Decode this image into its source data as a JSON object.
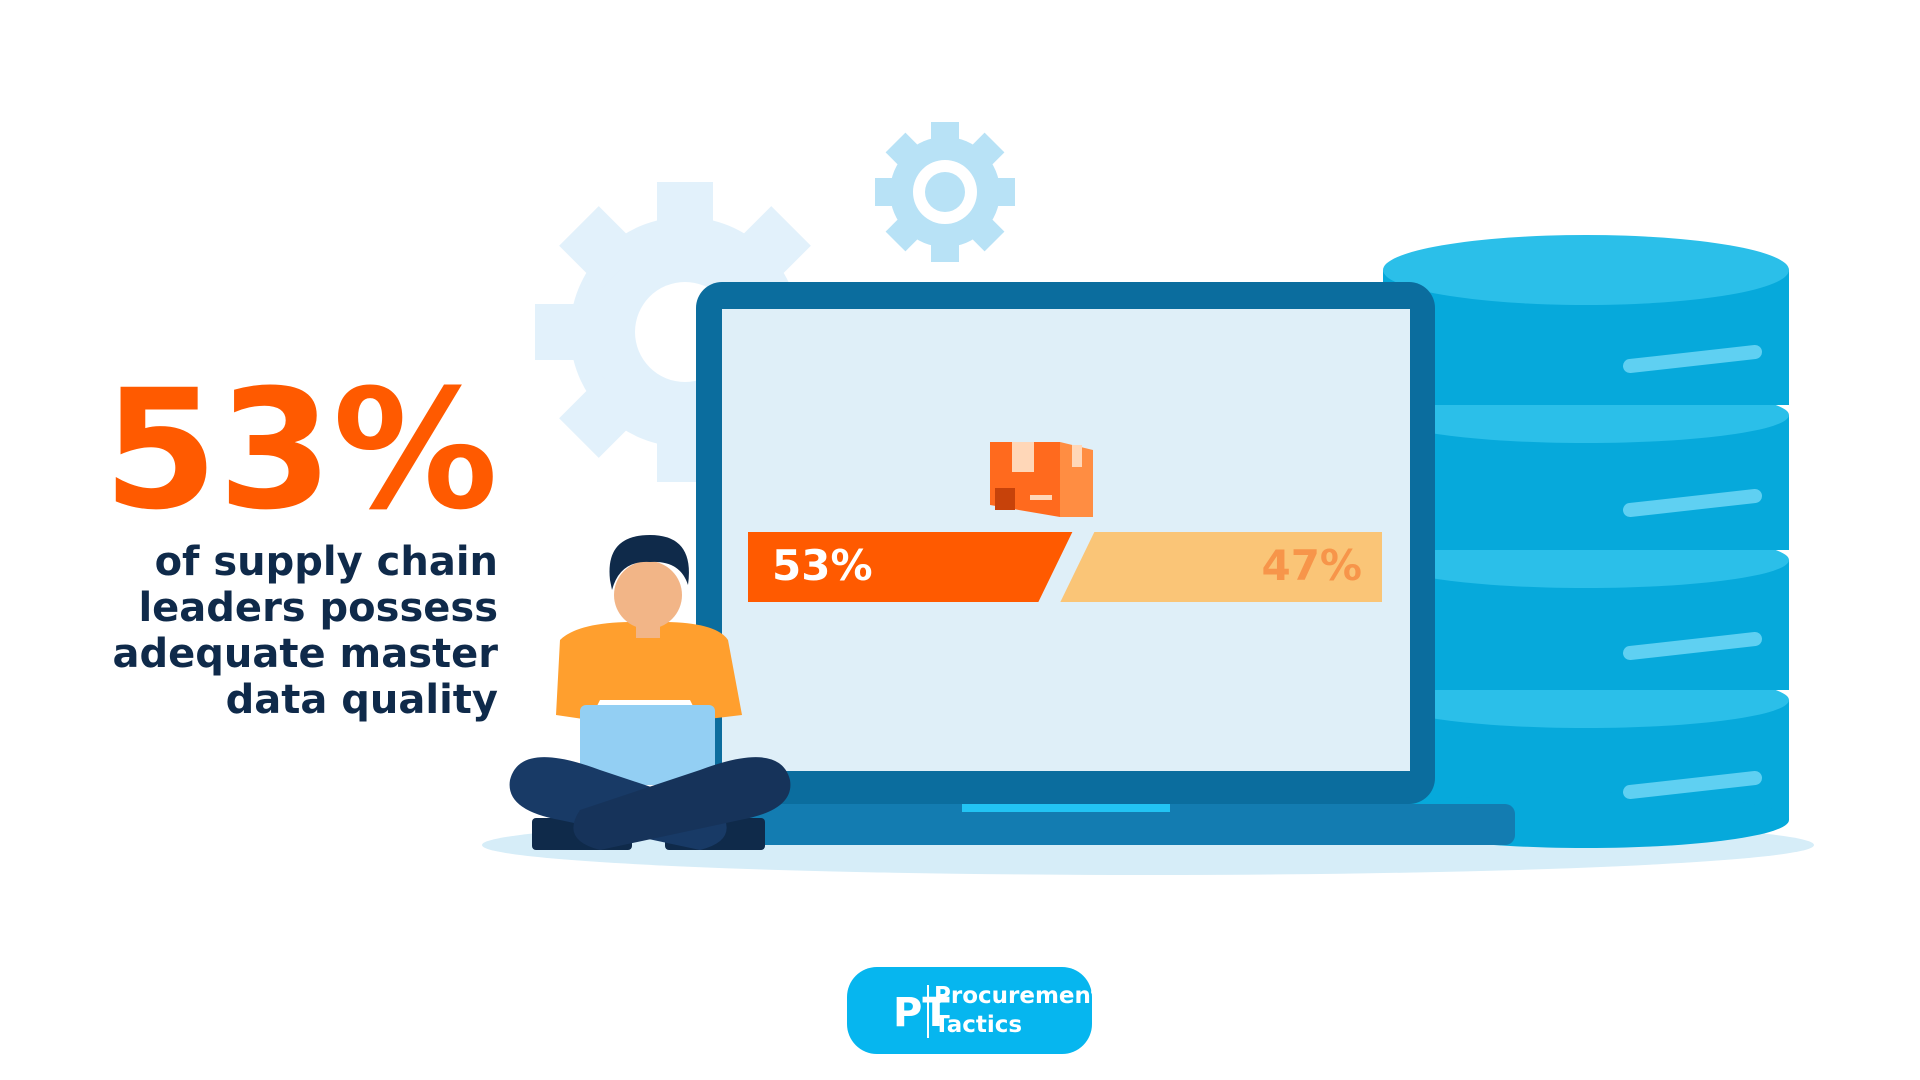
{
  "headline": {
    "stat": "53%",
    "lines": [
      "of supply chain",
      "leaders possess",
      "adequate master",
      "data quality"
    ]
  },
  "bar": {
    "segments": [
      {
        "value": 53,
        "label": "53%",
        "color": "#ff5a00",
        "label_color": "#ffffff"
      },
      {
        "value": 47,
        "label": "47%",
        "color": "#fac577",
        "label_color": "#f7954a"
      }
    ]
  },
  "logo": {
    "mark": "PT",
    "lines": [
      "Procurement",
      "Tactics"
    ]
  }
}
